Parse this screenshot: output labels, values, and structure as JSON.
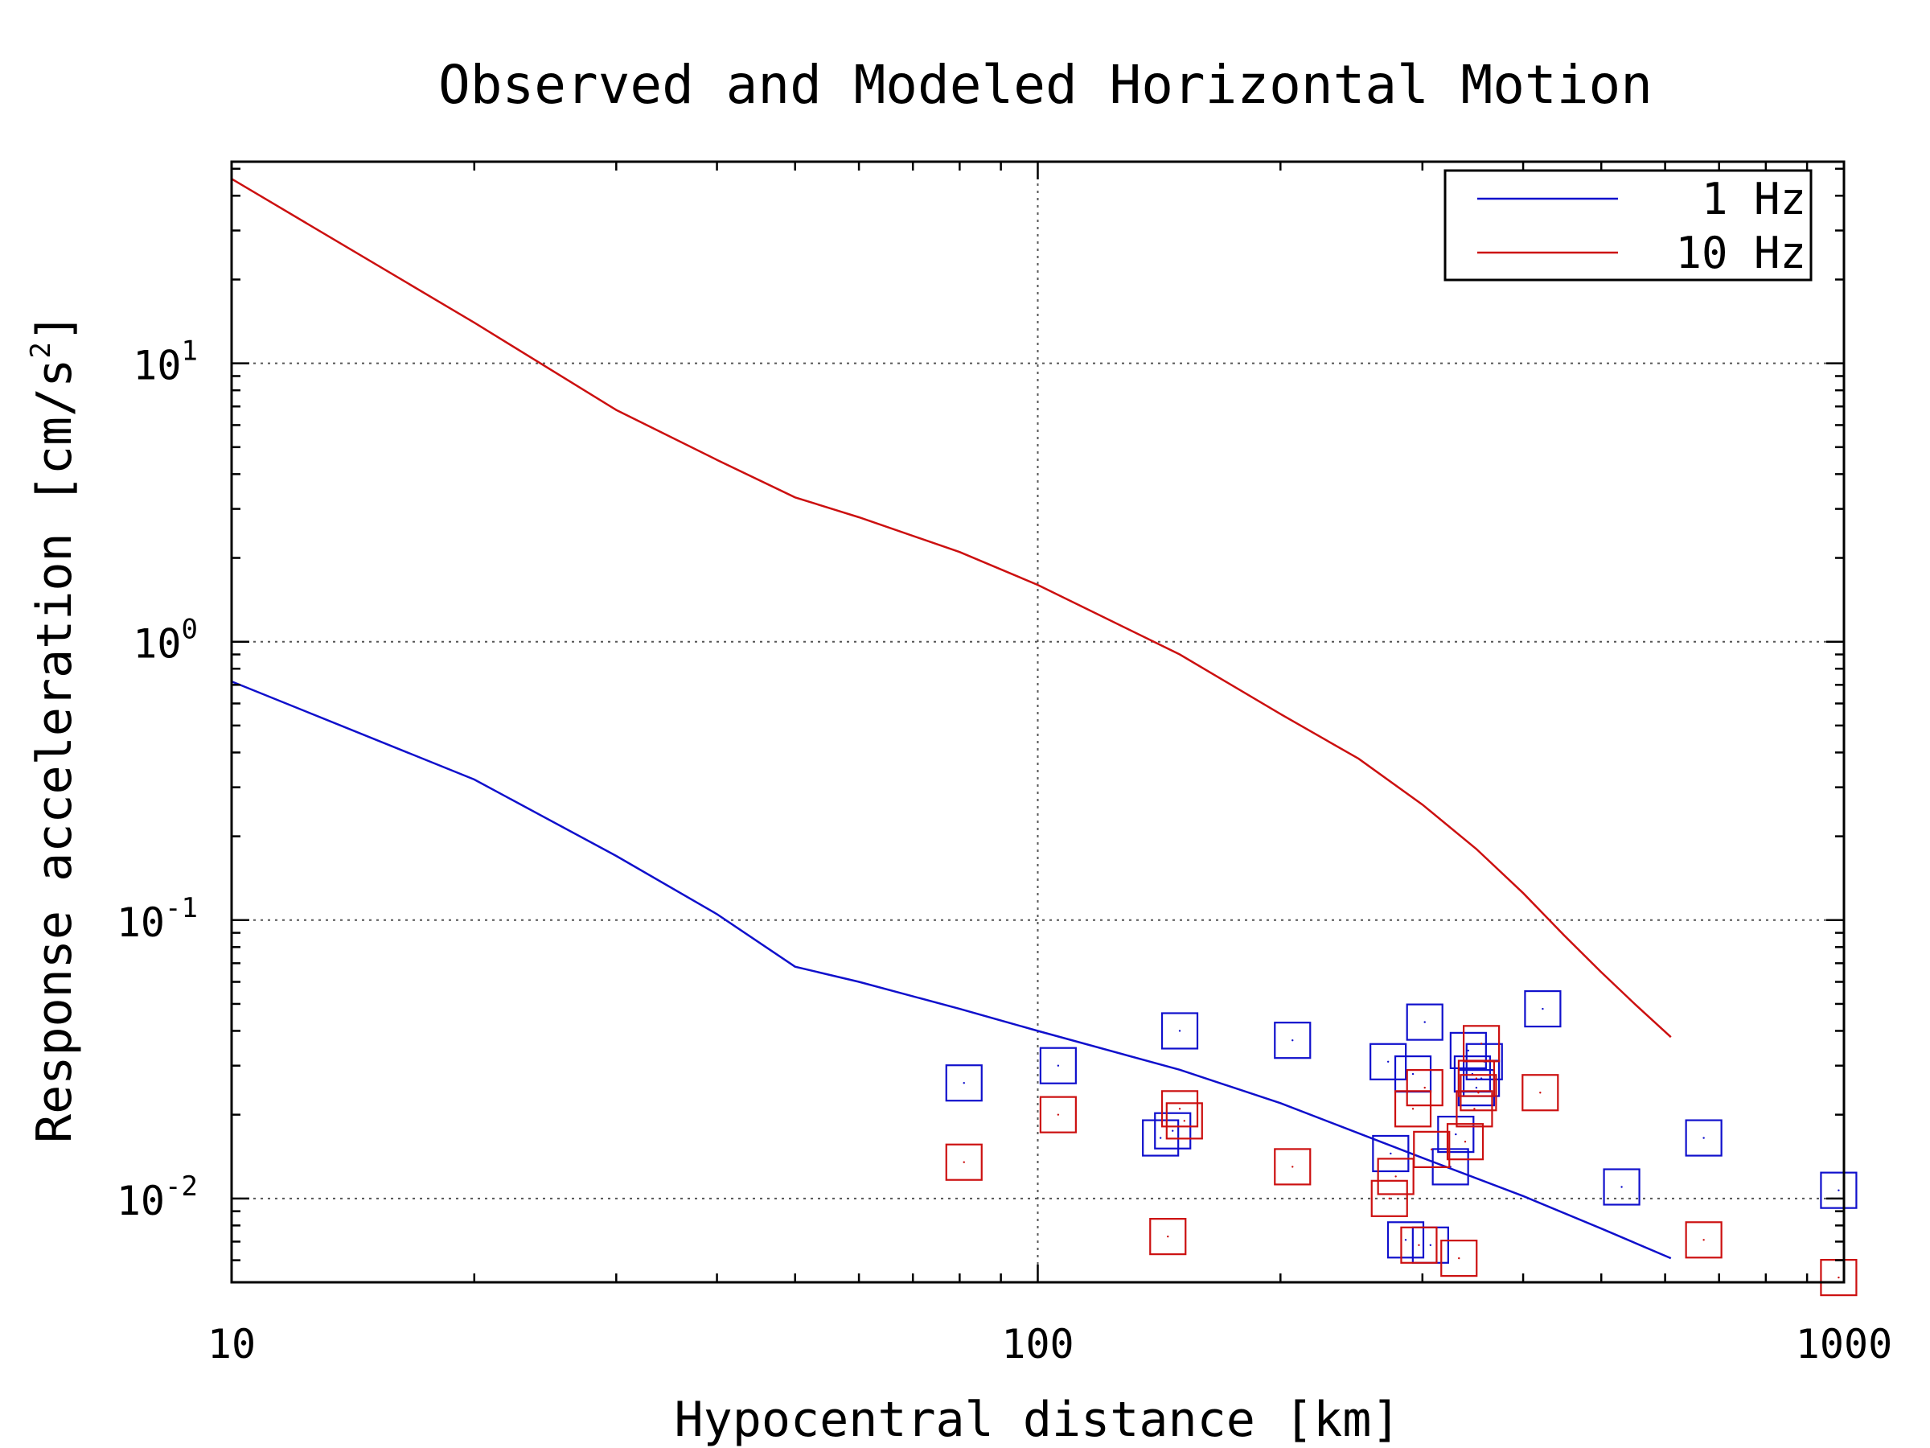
{
  "chart_data": {
    "type": "scatter",
    "title": "Observed and Modeled Horizontal Motion",
    "xlabel": "Hypocentral distance [km]",
    "ylabel": "Response acceleration [cm/s",
    "ylabel_sup": "2",
    "ylabel_end": "]",
    "xscale": "log",
    "yscale": "log",
    "xlim": [
      10,
      1000
    ],
    "ylim": [
      0.005,
      53
    ],
    "xticks": [
      {
        "value": 10,
        "label": "10"
      },
      {
        "value": 100,
        "label": "100"
      },
      {
        "value": 1000,
        "label": "1000"
      }
    ],
    "yticks": [
      {
        "value": 0.01,
        "base": "10",
        "exp": "-2"
      },
      {
        "value": 0.1,
        "base": "10",
        "exp": "-1"
      },
      {
        "value": 1,
        "base": "10",
        "exp": "0"
      },
      {
        "value": 10,
        "base": "10",
        "exp": "1"
      }
    ],
    "grid": true,
    "legend_position": "top-right",
    "series": [
      {
        "name": "1 Hz",
        "color": "#1010cc",
        "model": {
          "x": [
            10,
            20,
            30,
            40,
            50,
            60,
            80,
            100,
            150,
            200,
            300,
            400,
            500,
            610
          ],
          "y": [
            0.72,
            0.32,
            0.17,
            0.105,
            0.068,
            0.06,
            0.048,
            0.04,
            0.029,
            0.022,
            0.014,
            0.0102,
            0.0078,
            0.0061
          ]
        },
        "observed": {
          "x": [
            81,
            106,
            142,
            147,
            150,
            207,
            272,
            274,
            286,
            292,
            302,
            307,
            325,
            330,
            342,
            346,
            350,
            355,
            358,
            423,
            530,
            670,
            985
          ],
          "y": [
            0.026,
            0.03,
            0.0165,
            0.0175,
            0.04,
            0.037,
            0.031,
            0.0145,
            0.0071,
            0.028,
            0.043,
            0.0068,
            0.013,
            0.017,
            0.034,
            0.028,
            0.025,
            0.027,
            0.031,
            0.048,
            0.011,
            0.0165,
            0.0107
          ]
        }
      },
      {
        "name": "10 Hz",
        "color": "#cc1010",
        "model": {
          "x": [
            10,
            20,
            30,
            40,
            50,
            60,
            80,
            100,
            150,
            200,
            250,
            300,
            350,
            400,
            450,
            500,
            550,
            610
          ],
          "y": [
            46,
            14,
            6.8,
            4.5,
            3.3,
            2.8,
            2.1,
            1.6,
            0.9,
            0.55,
            0.38,
            0.26,
            0.18,
            0.125,
            0.088,
            0.065,
            0.05,
            0.038
          ]
        },
        "observed": {
          "x": [
            81,
            106,
            145,
            150,
            152,
            207,
            273,
            278,
            292,
            297,
            302,
            308,
            333,
            339,
            348,
            350,
            352,
            355,
            420,
            670,
            985
          ],
          "y": [
            0.0135,
            0.02,
            0.0073,
            0.021,
            0.019,
            0.013,
            0.01,
            0.012,
            0.021,
            0.0068,
            0.025,
            0.015,
            0.0061,
            0.016,
            0.021,
            0.027,
            0.024,
            0.036,
            0.024,
            0.0071,
            0.0052
          ]
        }
      }
    ]
  }
}
